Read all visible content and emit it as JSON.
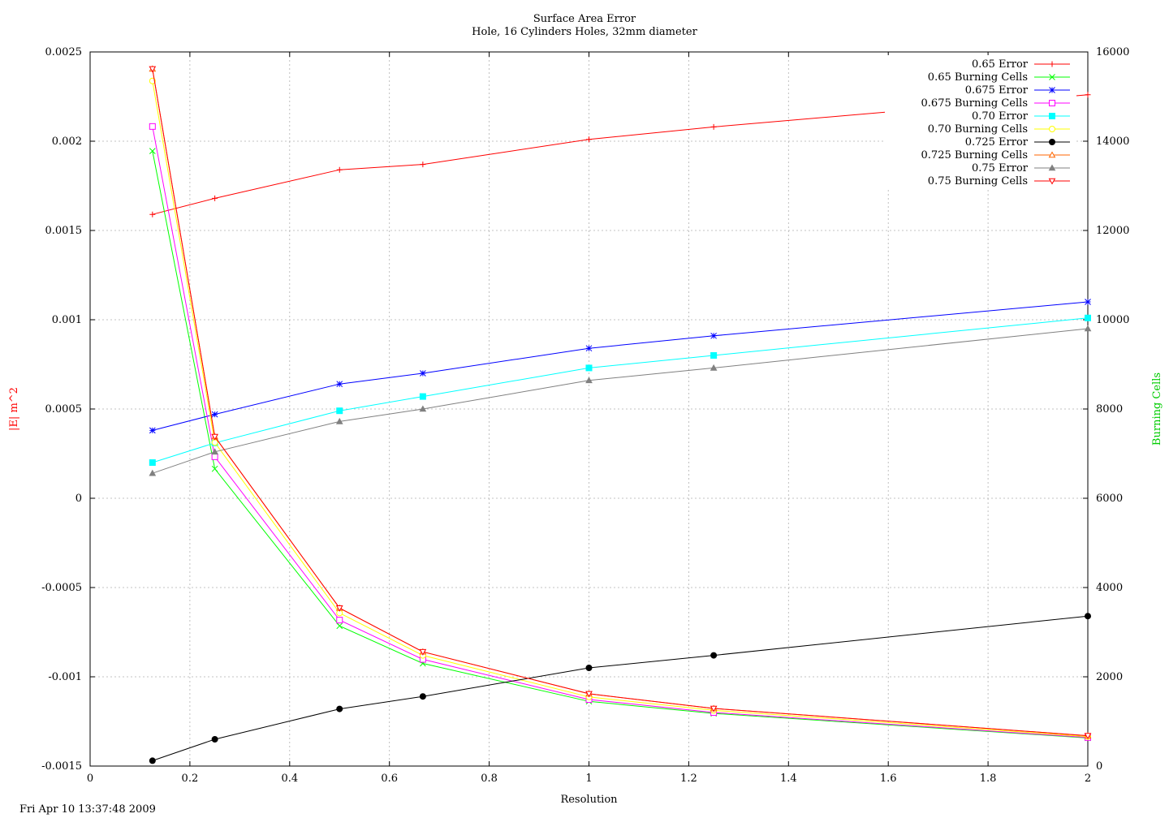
{
  "chart_data": {
    "type": "line",
    "title": "Surface Area Error",
    "subtitle": "Hole, 16 Cylinders Holes, 32mm diameter",
    "xlabel": "Resolution",
    "ylabel": "|E| m^2",
    "y2label": "Burning Cells",
    "ylabel_color": "#ff0000",
    "y2label_color": "#00cc00",
    "xlim": [
      0,
      2
    ],
    "ylim": [
      -0.0015,
      0.0025
    ],
    "y2lim": [
      0,
      16000
    ],
    "xticks": [
      "0",
      "0.2",
      "0.4",
      "0.6",
      "0.8",
      "1",
      "1.2",
      "1.4",
      "1.6",
      "1.8",
      "2"
    ],
    "yticks": [
      "-0.0015",
      "-0.001",
      "-0.0005",
      "0",
      "0.0005",
      "0.001",
      "0.0015",
      "0.002",
      "0.0025"
    ],
    "y2ticks": [
      "0",
      "2000",
      "4000",
      "6000",
      "8000",
      "10000",
      "12000",
      "14000",
      "16000"
    ],
    "grid": true,
    "legend_position": "top-right",
    "x": [
      0.125,
      0.25,
      0.5,
      0.667,
      1,
      1.25,
      2
    ],
    "series": [
      {
        "name": "0.65 Error",
        "axis": "y1",
        "color": "#ff0000",
        "marker": "plus",
        "values": [
          0.00159,
          0.00168,
          0.00184,
          0.00187,
          0.00201,
          0.00208,
          0.00226
        ]
      },
      {
        "name": "0.65 Burning Cells",
        "axis": "y2",
        "color": "#00ff00",
        "marker": "x",
        "values": [
          13780,
          6660,
          3140,
          2300,
          1450,
          1180,
          630
        ]
      },
      {
        "name": "0.675 Error",
        "axis": "y1",
        "color": "#0000ff",
        "marker": "star",
        "values": [
          0.00038,
          0.00047,
          0.00064,
          0.0007,
          0.00084,
          0.00091,
          0.0011
        ]
      },
      {
        "name": "0.675 Burning Cells",
        "axis": "y2",
        "color": "#ff00ff",
        "marker": "square-open",
        "values": [
          14330,
          6930,
          3270,
          2390,
          1490,
          1200,
          640
        ]
      },
      {
        "name": "0.70 Error",
        "axis": "y1",
        "color": "#00ffff",
        "marker": "square-filled",
        "values": [
          0.0002,
          0.00031,
          0.00049,
          0.00057,
          0.00073,
          0.0008,
          0.00101
        ]
      },
      {
        "name": "0.70 Burning Cells",
        "axis": "y2",
        "color": "#ffff00",
        "marker": "circle-open",
        "values": [
          15350,
          7250,
          3430,
          2480,
          1550,
          1250,
          660
        ]
      },
      {
        "name": "0.725 Error",
        "axis": "y1",
        "color": "#000000",
        "marker": "circle-filled",
        "values": [
          -0.00147,
          -0.00135,
          -0.00118,
          -0.00111,
          -0.00095,
          -0.00088,
          -0.00066
        ]
      },
      {
        "name": "0.725 Burning Cells",
        "axis": "y2",
        "color": "#ff6600",
        "marker": "triangle-open",
        "values": [
          15620,
          7380,
          3540,
          2560,
          1620,
          1290,
          680
        ]
      },
      {
        "name": "0.75 Error",
        "axis": "y1",
        "color": "#808080",
        "marker": "triangle-filled",
        "values": [
          0.00014,
          0.00026,
          0.00043,
          0.0005,
          0.00066,
          0.00073,
          0.00095
        ]
      },
      {
        "name": "0.75 Burning Cells",
        "axis": "y2",
        "color": "#ff0000",
        "marker": "triangle-down-open",
        "values": [
          15620,
          7380,
          3540,
          2560,
          1620,
          1290,
          680
        ]
      }
    ]
  },
  "timestamp": "Fri Apr 10 13:37:48 2009"
}
